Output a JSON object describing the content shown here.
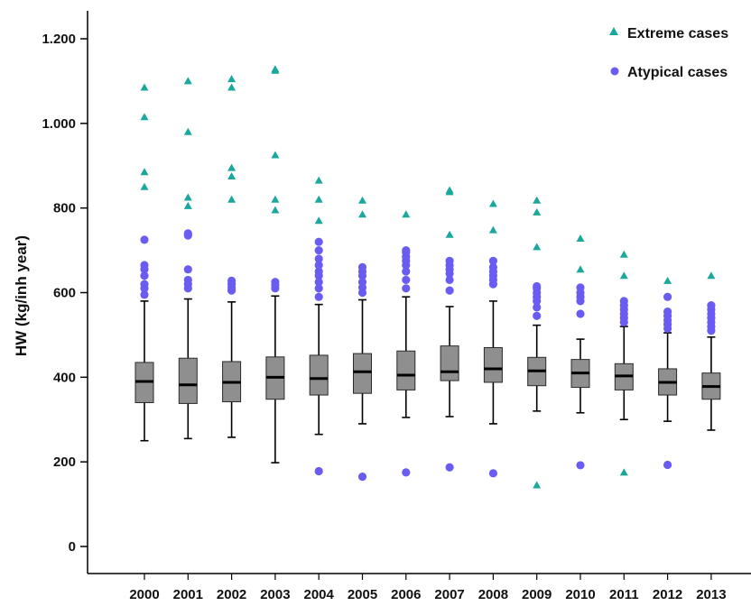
{
  "chart_data": {
    "type": "boxplot",
    "ylabel": "HW (kg/inh year)",
    "ylim": [
      0,
      1200
    ],
    "yticks": [
      0,
      200,
      400,
      600,
      800,
      1000,
      1200
    ],
    "ytick_labels": [
      "0",
      "200",
      "400",
      "600",
      "800",
      "1.000",
      "1.200"
    ],
    "categories": [
      "2000",
      "2001",
      "2002",
      "2003",
      "2004",
      "2005",
      "2006",
      "2007",
      "2008",
      "2009",
      "2010",
      "2011",
      "2012",
      "2013"
    ],
    "legend": {
      "position": "top-right",
      "entries": [
        {
          "name": "Extreme cases",
          "marker": "triangle",
          "color": "#1aa89c"
        },
        {
          "name": "Atypical cases",
          "marker": "circle",
          "color": "#6a5cf0"
        }
      ]
    },
    "colors": {
      "box_fill": "#8f8f8f",
      "whisker": "#000000",
      "extreme": "#1aa89c",
      "atypical": "#6a5cf0"
    },
    "boxes": [
      {
        "year": "2000",
        "min": 250,
        "q1": 340,
        "median": 390,
        "q3": 435,
        "max": 580,
        "atypical": [
          595,
          610,
          620,
          640,
          655,
          665,
          725
        ],
        "extreme": [
          850,
          885,
          1015,
          1085
        ]
      },
      {
        "year": "2001",
        "min": 255,
        "q1": 338,
        "median": 382,
        "q3": 445,
        "max": 585,
        "atypical": [
          610,
          620,
          630,
          655,
          735,
          740
        ],
        "extreme": [
          805,
          825,
          980,
          1100
        ]
      },
      {
        "year": "2002",
        "min": 258,
        "q1": 342,
        "median": 388,
        "q3": 437,
        "max": 578,
        "atypical": [
          605,
          612,
          620,
          628
        ],
        "extreme": [
          820,
          875,
          895,
          1085,
          1105
        ]
      },
      {
        "year": "2003",
        "min": 198,
        "q1": 348,
        "median": 400,
        "q3": 448,
        "max": 592,
        "atypical": [
          610,
          618,
          625
        ],
        "extreme": [
          795,
          820,
          925,
          1125,
          1128
        ]
      },
      {
        "year": "2004",
        "min": 265,
        "q1": 358,
        "median": 397,
        "q3": 452,
        "max": 572,
        "atypical": [
          178,
          590,
          610,
          625,
          640,
          650,
          665,
          680,
          700,
          720
        ],
        "extreme": [
          770,
          820,
          865
        ]
      },
      {
        "year": "2005",
        "min": 290,
        "q1": 362,
        "median": 413,
        "q3": 456,
        "max": 583,
        "atypical": [
          165,
          600,
          612,
          625,
          640,
          650,
          660
        ],
        "extreme": [
          785,
          818
        ]
      },
      {
        "year": "2006",
        "min": 305,
        "q1": 370,
        "median": 405,
        "q3": 462,
        "max": 590,
        "atypical": [
          175,
          610,
          630,
          650,
          665,
          675,
          685,
          695,
          700
        ],
        "extreme": [
          785
        ]
      },
      {
        "year": "2007",
        "min": 307,
        "q1": 392,
        "median": 413,
        "q3": 474,
        "max": 567,
        "atypical": [
          187,
          605,
          630,
          645,
          655,
          665,
          675
        ],
        "extreme": [
          737,
          838,
          842
        ]
      },
      {
        "year": "2008",
        "min": 290,
        "q1": 388,
        "median": 420,
        "q3": 470,
        "max": 580,
        "atypical": [
          173,
          620,
          630,
          640,
          650,
          660,
          675
        ],
        "extreme": [
          748,
          810
        ]
      },
      {
        "year": "2009",
        "min": 320,
        "q1": 380,
        "median": 415,
        "q3": 447,
        "max": 523,
        "atypical": [
          545,
          565,
          580,
          590,
          600,
          610,
          615
        ],
        "extreme": [
          145,
          708,
          790,
          818
        ]
      },
      {
        "year": "2010",
        "min": 316,
        "q1": 376,
        "median": 410,
        "q3": 442,
        "max": 490,
        "atypical": [
          192,
          550,
          580,
          590,
          600,
          612
        ],
        "extreme": [
          655,
          728
        ]
      },
      {
        "year": "2011",
        "min": 300,
        "q1": 370,
        "median": 403,
        "q3": 432,
        "max": 520,
        "atypical": [
          530,
          540,
          550,
          560,
          570,
          580
        ],
        "extreme": [
          175,
          640,
          690
        ]
      },
      {
        "year": "2012",
        "min": 296,
        "q1": 358,
        "median": 388,
        "q3": 420,
        "max": 505,
        "atypical": [
          193,
          515,
          525,
          535,
          545,
          555,
          590
        ],
        "extreme": [
          628
        ]
      },
      {
        "year": "2013",
        "min": 275,
        "q1": 348,
        "median": 378,
        "q3": 410,
        "max": 495,
        "atypical": [
          510,
          520,
          530,
          540,
          550,
          560,
          570
        ],
        "extreme": [
          640
        ]
      }
    ]
  }
}
